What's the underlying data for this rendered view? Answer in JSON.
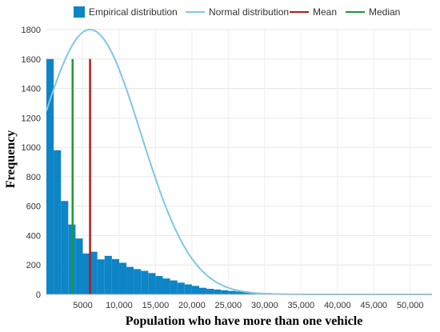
{
  "chart_data": {
    "type": "bar",
    "title": "",
    "xlabel": "Population who have more than one vehicle",
    "ylabel": "Frequency",
    "xlim": [
      0,
      53000
    ],
    "ylim": [
      0,
      1800
    ],
    "x_ticks": [
      {
        "value": 5000,
        "label": "5000"
      },
      {
        "value": 10000,
        "label": "10,000"
      },
      {
        "value": 15000,
        "label": "15,000"
      },
      {
        "value": 20000,
        "label": "20,000"
      },
      {
        "value": 25000,
        "label": "25,000"
      },
      {
        "value": 30000,
        "label": "30,000"
      },
      {
        "value": 35000,
        "label": "35,000"
      },
      {
        "value": 40000,
        "label": "40,000"
      },
      {
        "value": 45000,
        "label": "45,000"
      },
      {
        "value": 50000,
        "label": "50,000"
      }
    ],
    "y_ticks": [
      {
        "value": 0,
        "label": "0"
      },
      {
        "value": 200,
        "label": "200"
      },
      {
        "value": 400,
        "label": "400"
      },
      {
        "value": 600,
        "label": "600"
      },
      {
        "value": 800,
        "label": "800"
      },
      {
        "value": 1000,
        "label": "1000"
      },
      {
        "value": 1200,
        "label": "1200"
      },
      {
        "value": 1400,
        "label": "1400"
      },
      {
        "value": 1600,
        "label": "1600"
      },
      {
        "value": 1800,
        "label": "1800"
      }
    ],
    "grid": true,
    "legend_position": "top",
    "legend": [
      {
        "name": "Empirical distribution",
        "kind": "box",
        "color": "#0d85c7"
      },
      {
        "name": "Normal distribution",
        "kind": "line",
        "color": "#7ec8e3"
      },
      {
        "name": "Mean",
        "kind": "line",
        "color": "#b01c1c"
      },
      {
        "name": "Median",
        "kind": "line",
        "color": "#1a9a3a"
      }
    ],
    "histogram": {
      "name": "Empirical distribution",
      "color": "#0d85c7",
      "bin_width": 1000,
      "bin_start": 0,
      "values": [
        1600,
        980,
        635,
        475,
        380,
        278,
        290,
        238,
        262,
        240,
        215,
        187,
        172,
        160,
        145,
        125,
        108,
        95,
        80,
        68,
        58,
        45,
        38,
        33,
        28,
        24,
        20,
        16,
        13,
        11,
        9,
        7,
        6,
        5,
        4,
        4,
        3,
        3,
        2,
        2,
        2,
        2,
        1,
        1,
        1,
        1,
        1,
        1,
        1,
        1,
        1,
        1,
        1
      ]
    },
    "normal_curve": {
      "name": "Normal distribution",
      "color": "#7ec8e3",
      "peak_x": 6000,
      "peak_y": 1800,
      "sigma": 7000
    },
    "mean": {
      "name": "Mean",
      "value": 6000,
      "color": "#b01c1c",
      "top": 1600
    },
    "median": {
      "name": "Median",
      "value": 3600,
      "color": "#1a9a3a",
      "top": 1600
    }
  }
}
